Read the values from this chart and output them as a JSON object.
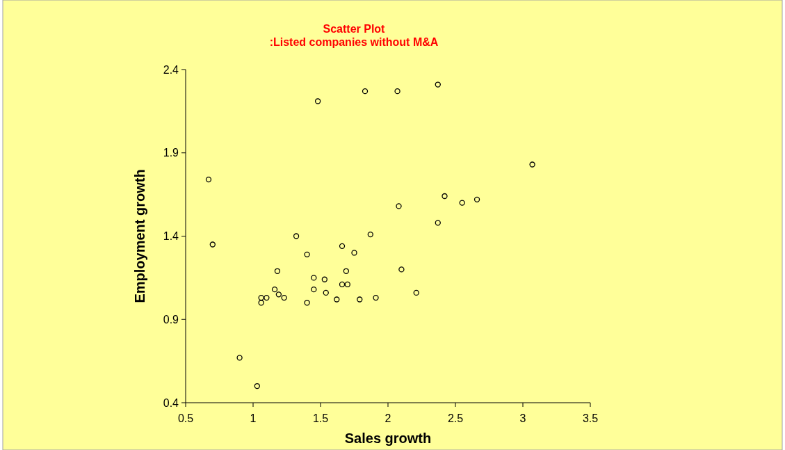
{
  "chart_data": {
    "type": "scatter",
    "title": "Scatter Plot\n:Listed companies without M&A",
    "xlabel": "Sales growth",
    "ylabel": "Employment growth",
    "xlim": [
      0.5,
      3.5
    ],
    "xticks": [
      0.5,
      1,
      1.5,
      2,
      2.5,
      3,
      3.5
    ],
    "ylim": [
      0.4,
      2.4
    ],
    "yticks": [
      0.4,
      0.9,
      1.4,
      1.9,
      2.4
    ],
    "grid": false,
    "marker": "circle",
    "series": [
      {
        "color": "#000000",
        "x": [
          1.48,
          1.83,
          2.07,
          2.37,
          3.07,
          0.67,
          0.7,
          2.42,
          2.55,
          2.66,
          2.08,
          2.37,
          1.32,
          1.87,
          1.66,
          1.4,
          1.75,
          1.18,
          1.69,
          2.1,
          1.45,
          1.53,
          1.66,
          1.7,
          1.16,
          1.45,
          1.54,
          2.21,
          1.19,
          1.06,
          1.1,
          1.23,
          1.06,
          1.4,
          1.62,
          1.79,
          1.91,
          0.9,
          1.03
        ],
        "values": [
          2.21,
          2.27,
          2.27,
          2.31,
          1.83,
          1.74,
          1.35,
          1.64,
          1.6,
          1.62,
          1.58,
          1.48,
          1.4,
          1.41,
          1.34,
          1.29,
          1.3,
          1.19,
          1.19,
          1.2,
          1.15,
          1.14,
          1.11,
          1.11,
          1.08,
          1.08,
          1.06,
          1.06,
          1.05,
          1.03,
          1.03,
          1.03,
          1.0,
          1.0,
          1.02,
          1.02,
          1.03,
          0.67,
          0.5
        ]
      }
    ]
  }
}
